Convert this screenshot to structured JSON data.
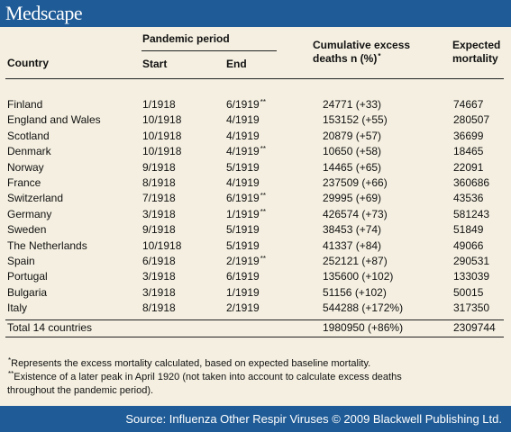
{
  "brand": {
    "logo_text": "Medscape"
  },
  "table": {
    "headers": {
      "country": "Country",
      "pandemic_period": "Pandemic period",
      "start": "Start",
      "end": "End",
      "excess_line1": "Cumulative excess",
      "excess_line2": "deaths n (%)",
      "excess_mark": "*",
      "expected_line1": "Expected",
      "expected_line2": "mortality"
    },
    "rows": [
      {
        "country": "Finland",
        "start": "1/1918",
        "end": "6/1919",
        "end_mark": "**",
        "excess": "24771 (+33)",
        "expected": "74667"
      },
      {
        "country": "England and Wales",
        "start": "10/1918",
        "end": "4/1919",
        "end_mark": "",
        "excess": "153152 (+55)",
        "expected": "280507"
      },
      {
        "country": "Scotland",
        "start": "10/1918",
        "end": "4/1919",
        "end_mark": "",
        "excess": "20879 (+57)",
        "expected": "36699"
      },
      {
        "country": "Denmark",
        "start": "10/1918",
        "end": "4/1919",
        "end_mark": "**",
        "excess": "10650 (+58)",
        "expected": "18465"
      },
      {
        "country": "Norway",
        "start": "9/1918",
        "end": "5/1919",
        "end_mark": "",
        "excess": "14465 (+65)",
        "expected": "22091"
      },
      {
        "country": "France",
        "start": "8/1918",
        "end": "4/1919",
        "end_mark": "",
        "excess": "237509 (+66)",
        "expected": "360686"
      },
      {
        "country": "Switzerland",
        "start": "7/1918",
        "end": "6/1919",
        "end_mark": "**",
        "excess": "29995 (+69)",
        "expected": "43536"
      },
      {
        "country": "Germany",
        "start": "3/1918",
        "end": "1/1919",
        "end_mark": "**",
        "excess": "426574 (+73)",
        "expected": "581243"
      },
      {
        "country": "Sweden",
        "start": "9/1918",
        "end": "5/1919",
        "end_mark": "",
        "excess": "38453 (+74)",
        "expected": "51849"
      },
      {
        "country": "The Netherlands",
        "start": "10/1918",
        "end": "5/1919",
        "end_mark": "",
        "excess": "41337 (+84)",
        "expected": "49066"
      },
      {
        "country": "Spain",
        "start": "6/1918",
        "end": "2/1919",
        "end_mark": "**",
        "excess": "252121 (+87)",
        "expected": "290531"
      },
      {
        "country": "Portugal",
        "start": "3/1918",
        "end": "6/1919",
        "end_mark": "",
        "excess": "135600 (+102)",
        "expected": "133039"
      },
      {
        "country": "Bulgaria",
        "start": "3/1918",
        "end": "1/1919",
        "end_mark": "",
        "excess": "51156 (+102)",
        "expected": "50015"
      },
      {
        "country": "Italy",
        "start": "8/1918",
        "end": "2/1919",
        "end_mark": "",
        "excess": "544288 (+172%)",
        "expected": "317350"
      }
    ],
    "total": {
      "country": "Total 14 countries",
      "excess": "1980950 (+86%)",
      "expected": "2309744"
    }
  },
  "footnotes": {
    "note1_mark": "*",
    "note1_text": "Represents the excess mortality calculated, based on expected baseline mortality.",
    "note2_mark": "**",
    "note2_line1": "Existence of a later peak in April 1920 (not taken into account to calculate excess deaths",
    "note2_line2": "throughout the pandemic period)."
  },
  "source": {
    "text": "Source: Influenza Other Respir Viruses © 2009 Blackwell Publishing Ltd."
  },
  "colors": {
    "bar": "#1f5b96",
    "background": "#f4efe0"
  }
}
